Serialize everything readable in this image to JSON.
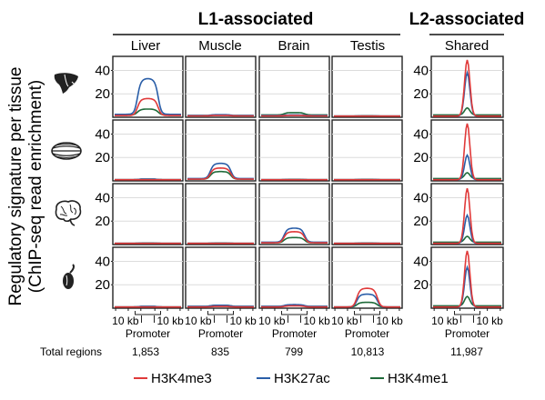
{
  "chart_data": {
    "type": "line",
    "ylabel_line1": "Regulatory signature per tissue",
    "ylabel_line2": "(ChIP-seq read enrichment)",
    "groups": [
      {
        "label": "L1-associated",
        "columns": [
          "Liver",
          "Muscle",
          "Brain",
          "Testis"
        ]
      },
      {
        "label": "L2-associated",
        "columns": [
          "Shared"
        ]
      }
    ],
    "row_icons": [
      "liver-icon",
      "muscle-icon",
      "brain-icon",
      "testis-icon"
    ],
    "y_ticks": [
      20,
      40
    ],
    "ylim": [
      0,
      52
    ],
    "x_axis": {
      "left_label": "10 kb",
      "right_label": "10 kb",
      "center_label": "Promoter"
    },
    "totals_label": "Total regions",
    "totals": [
      "1,853",
      "835",
      "799",
      "10,813",
      "11,987"
    ],
    "series": [
      {
        "name": "H3K4me3",
        "color": "#e03a3a"
      },
      {
        "name": "H3K27ac",
        "color": "#2a5ea8"
      },
      {
        "name": "H3K4me1",
        "color": "#1f6b3a"
      }
    ],
    "panels": [
      [
        {
          "shape": "plateau",
          "peaks": [
            16,
            33,
            7
          ],
          "base": [
            1.5,
            2.5,
            2
          ]
        },
        {
          "shape": "plateau",
          "peaks": [
            1.5,
            2.2,
            1.8
          ],
          "base": [
            1.2,
            1.5,
            1.5
          ]
        },
        {
          "shape": "plateau",
          "peaks": [
            1.5,
            2,
            4
          ],
          "base": [
            1.2,
            1.5,
            2
          ]
        },
        {
          "shape": "plateau",
          "peaks": [
            1,
            1.2,
            1.3
          ],
          "base": [
            1,
            1,
            1
          ]
        },
        {
          "shape": "peak",
          "peaks": [
            49,
            38,
            8
          ],
          "base": [
            1,
            1,
            2
          ]
        }
      ],
      [
        {
          "shape": "plateau",
          "peaks": [
            1,
            1.5,
            1.5
          ],
          "base": [
            1,
            1,
            1
          ]
        },
        {
          "shape": "plateau",
          "peaks": [
            11,
            15,
            8
          ],
          "base": [
            1.5,
            2,
            1.5
          ]
        },
        {
          "shape": "plateau",
          "peaks": [
            1,
            1.2,
            1.3
          ],
          "base": [
            1,
            1,
            1
          ]
        },
        {
          "shape": "plateau",
          "peaks": [
            1,
            1.2,
            1.3
          ],
          "base": [
            1,
            1,
            1
          ]
        },
        {
          "shape": "peak",
          "peaks": [
            49,
            22,
            7
          ],
          "base": [
            1,
            1,
            2
          ]
        }
      ],
      [
        {
          "shape": "plateau",
          "peaks": [
            1,
            1.2,
            1.3
          ],
          "base": [
            1,
            1,
            1
          ]
        },
        {
          "shape": "plateau",
          "peaks": [
            1,
            1.2,
            1.3
          ],
          "base": [
            1,
            1,
            1
          ]
        },
        {
          "shape": "plateau",
          "peaks": [
            11,
            14,
            6
          ],
          "base": [
            1.5,
            2,
            1.5
          ]
        },
        {
          "shape": "plateau",
          "peaks": [
            1,
            1.2,
            1.3
          ],
          "base": [
            1,
            1,
            1
          ]
        },
        {
          "shape": "peak",
          "peaks": [
            48,
            25,
            7
          ],
          "base": [
            1,
            1,
            2
          ]
        }
      ],
      [
        {
          "shape": "plateau",
          "peaks": [
            1,
            1.5,
            1.5
          ],
          "base": [
            1,
            1,
            1
          ]
        },
        {
          "shape": "plateau",
          "peaks": [
            1.5,
            2.5,
            2.5
          ],
          "base": [
            1,
            1.5,
            1.5
          ]
        },
        {
          "shape": "plateau",
          "peaks": [
            2,
            3,
            2.5
          ],
          "base": [
            1,
            1.5,
            1.5
          ]
        },
        {
          "shape": "plateau",
          "peaks": [
            17,
            12,
            5
          ],
          "base": [
            1,
            1,
            1
          ]
        },
        {
          "shape": "peak",
          "peaks": [
            49,
            35,
            10
          ],
          "base": [
            1,
            1,
            2
          ]
        }
      ]
    ]
  }
}
